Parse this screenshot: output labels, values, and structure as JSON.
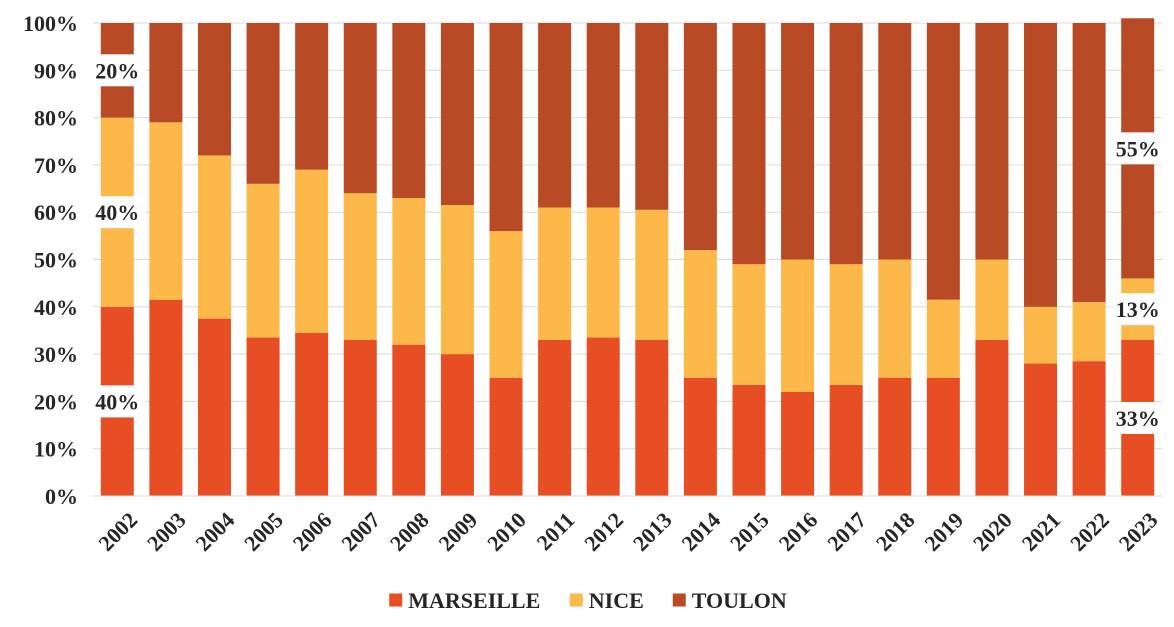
{
  "chart_data": {
    "type": "bar",
    "stacked": true,
    "percent": true,
    "categories": [
      "2002",
      "2003",
      "2004",
      "2005",
      "2006",
      "2007",
      "2008",
      "2009",
      "2010",
      "2011",
      "2012",
      "2013",
      "2014",
      "2015",
      "2016",
      "2017",
      "2018",
      "2019",
      "2020",
      "2021",
      "2022",
      "2023"
    ],
    "series": [
      {
        "name": "MARSEILLE",
        "color": "#E84E24",
        "values": [
          40,
          41.5,
          37.5,
          33.5,
          34.5,
          33,
          32,
          30,
          25,
          33,
          33.5,
          33,
          25,
          23.5,
          22,
          23.5,
          25,
          25,
          33,
          28,
          28.5,
          33
        ]
      },
      {
        "name": "NICE",
        "color": "#FDB84A",
        "values": [
          40,
          37.5,
          34.5,
          32.5,
          34.5,
          31,
          31,
          31.5,
          31,
          28,
          27.5,
          27.5,
          27,
          25.5,
          28,
          25.5,
          25,
          16.5,
          17,
          12,
          12.5,
          13
        ]
      },
      {
        "name": "TOULON",
        "color": "#B84A25",
        "values": [
          20,
          21,
          28,
          34,
          31,
          36,
          37,
          38.5,
          44,
          39,
          39,
          39.5,
          48,
          51,
          50,
          51,
          50,
          58.5,
          50,
          60,
          59,
          55
        ]
      }
    ],
    "data_labels": [
      {
        "category": "2002",
        "series": "MARSEILLE",
        "text": "40%"
      },
      {
        "category": "2002",
        "series": "NICE",
        "text": "40%"
      },
      {
        "category": "2002",
        "series": "TOULON",
        "text": "20%"
      },
      {
        "category": "2023",
        "series": "MARSEILLE",
        "text": "33%"
      },
      {
        "category": "2023",
        "series": "NICE",
        "text": "13%"
      },
      {
        "category": "2023",
        "series": "TOULON",
        "text": "55%"
      }
    ],
    "ylim": [
      0,
      100
    ],
    "yticks": [
      "0%",
      "10%",
      "20%",
      "30%",
      "40%",
      "50%",
      "60%",
      "70%",
      "80%",
      "90%",
      "100%"
    ],
    "grid": true,
    "legend": "bottom"
  }
}
